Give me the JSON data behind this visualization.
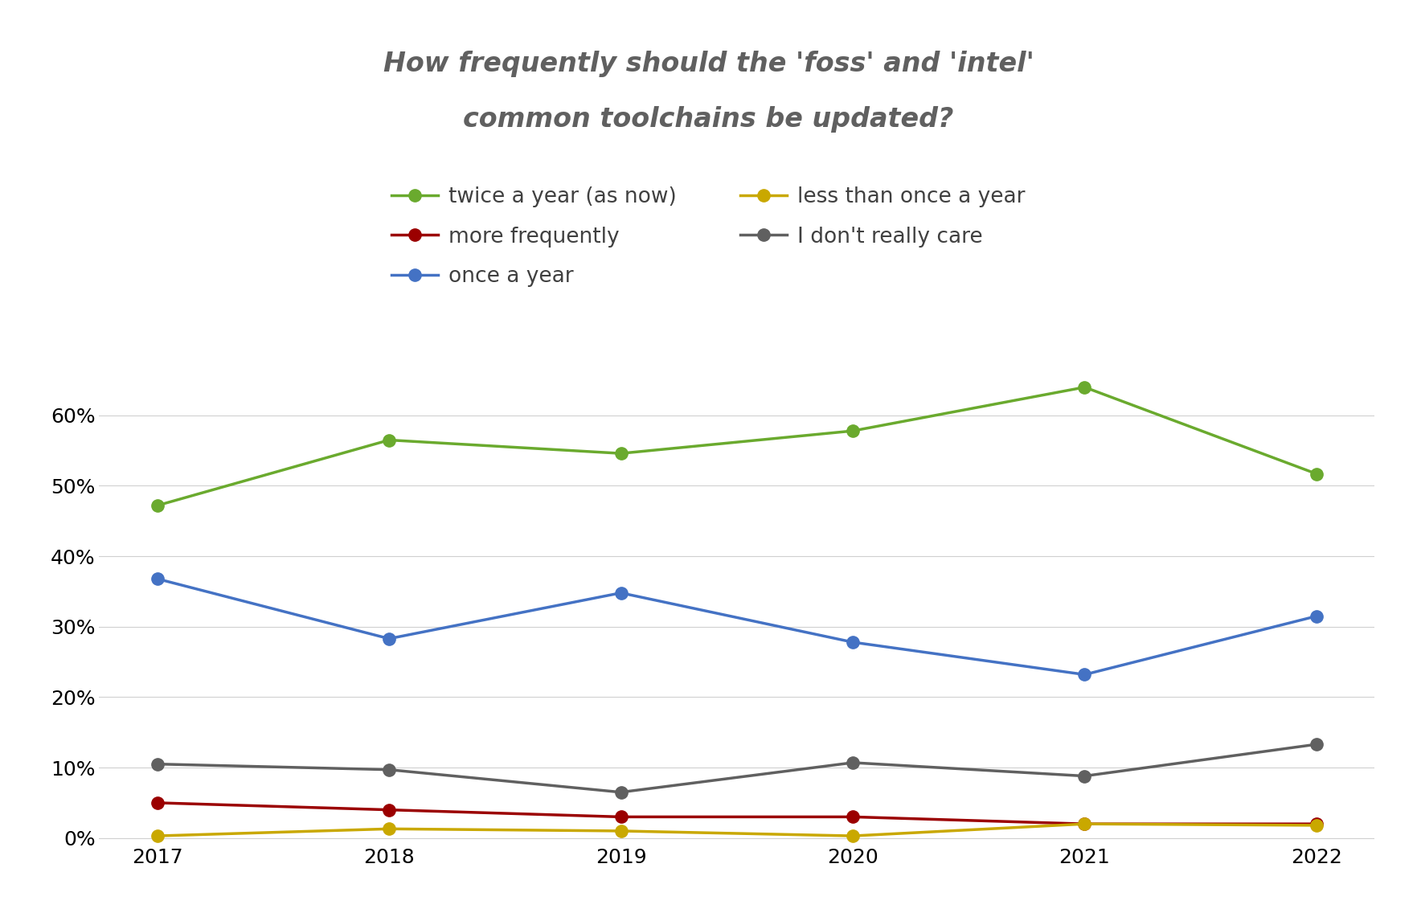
{
  "title_line1": "How frequently should the 'foss' and 'intel'",
  "title_line2": "common toolchains be updated?",
  "years": [
    2017,
    2018,
    2019,
    2020,
    2021,
    2022
  ],
  "series": [
    {
      "label": "twice a year (as now)",
      "color": "#6aaa2e",
      "values": [
        0.472,
        0.565,
        0.546,
        0.578,
        0.64,
        0.517
      ]
    },
    {
      "label": "more frequently",
      "color": "#9b0000",
      "values": [
        0.05,
        0.04,
        0.03,
        0.03,
        0.02,
        0.02
      ]
    },
    {
      "label": "once a year",
      "color": "#4472c4",
      "values": [
        0.368,
        0.283,
        0.348,
        0.278,
        0.232,
        0.315
      ]
    },
    {
      "label": "less than once a year",
      "color": "#c9a800",
      "values": [
        0.003,
        0.013,
        0.01,
        0.003,
        0.02,
        0.018
      ]
    },
    {
      "label": "I don't really care",
      "color": "#606060",
      "values": [
        0.105,
        0.097,
        0.065,
        0.107,
        0.088,
        0.133
      ]
    }
  ],
  "ylim": [
    -0.008,
    0.695
  ],
  "yticks": [
    0.0,
    0.1,
    0.2,
    0.3,
    0.4,
    0.5,
    0.6
  ],
  "ytick_labels": [
    "0%",
    "10%",
    "20%",
    "30%",
    "40%",
    "50%",
    "60%"
  ],
  "background_color": "#ffffff",
  "grid_color": "#d0d0d0",
  "marker": "o",
  "marker_size": 11,
  "line_width": 2.5,
  "title_fontsize": 24,
  "legend_fontsize": 19,
  "tick_fontsize": 18,
  "title_color": "#606060"
}
